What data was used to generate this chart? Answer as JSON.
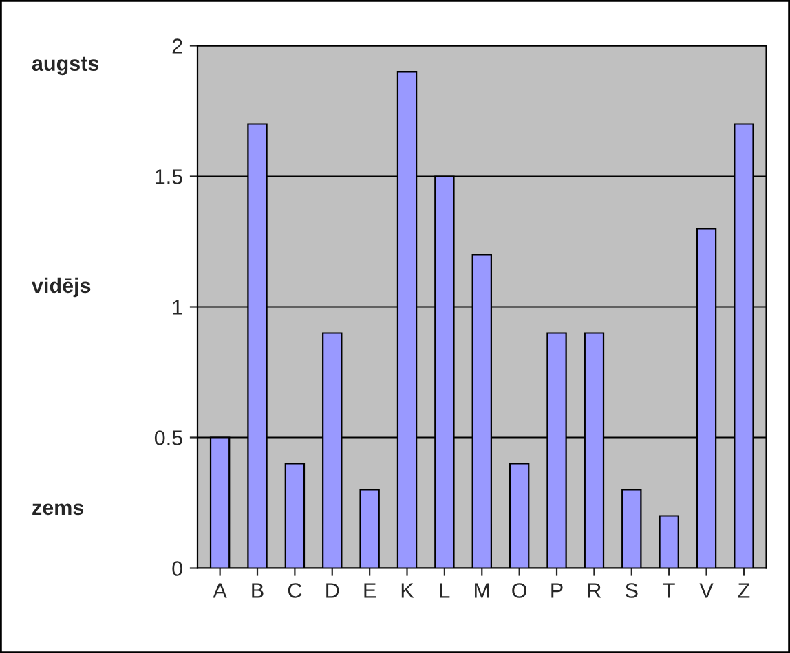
{
  "chart_data": {
    "type": "bar",
    "categories": [
      "A",
      "B",
      "C",
      "D",
      "E",
      "K",
      "L",
      "M",
      "O",
      "P",
      "R",
      "S",
      "T",
      "V",
      "Z"
    ],
    "values": [
      0.5,
      1.7,
      0.4,
      0.9,
      0.3,
      1.9,
      1.5,
      1.2,
      0.4,
      0.9,
      0.9,
      0.3,
      0.2,
      1.3,
      1.7
    ],
    "color": "#9999ff",
    "ylim": [
      0,
      2
    ],
    "yticks": [
      0,
      0.5,
      1,
      1.5,
      2
    ],
    "grid": "y",
    "annotations": [
      "augsts",
      "vidējs",
      "zems"
    ]
  }
}
